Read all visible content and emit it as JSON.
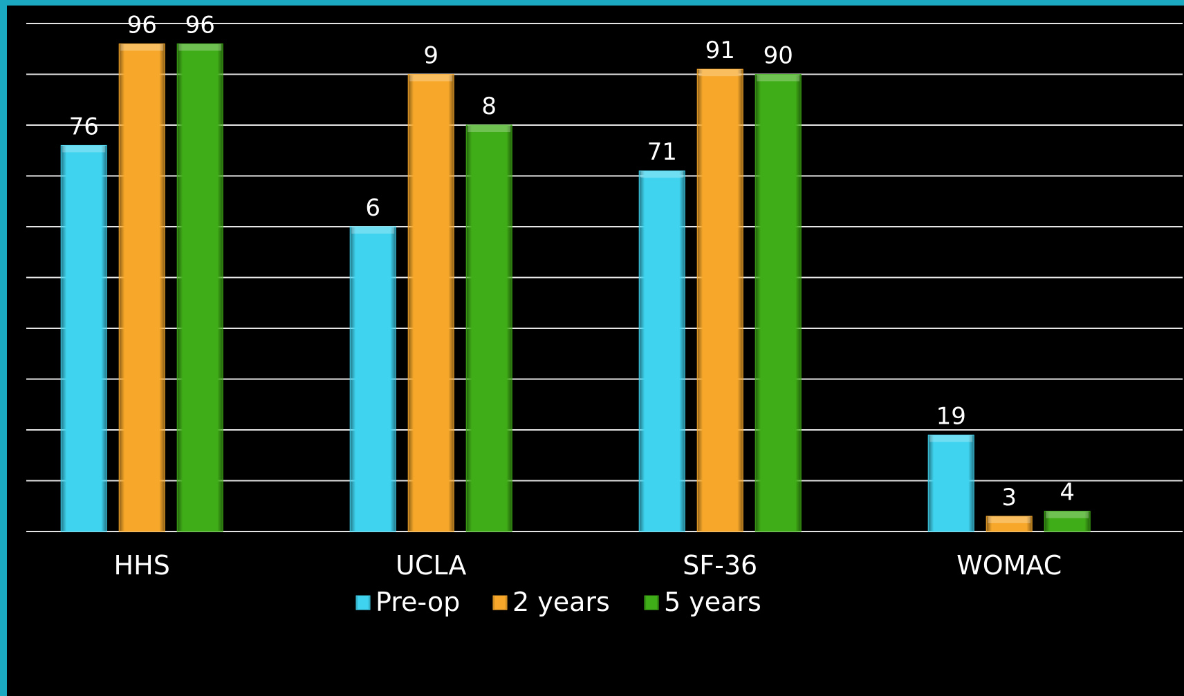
{
  "chart_data": {
    "type": "bar",
    "categories": [
      "HHS",
      "UCLA",
      "SF-36",
      "WOMAC"
    ],
    "series": [
      {
        "name": "Pre-op",
        "values": [
          76,
          6,
          71,
          19
        ],
        "labels": [
          "76",
          "6",
          "71",
          "19"
        ],
        "color": "#3fd3ef"
      },
      {
        "name": "2 years",
        "values": [
          96,
          9,
          91,
          3
        ],
        "labels": [
          "96",
          "9",
          "91",
          "3"
        ],
        "color": "#f7a82a"
      },
      {
        "name": "5 years",
        "values": [
          96,
          8,
          90,
          4
        ],
        "labels": [
          "96",
          "8",
          "90",
          "4"
        ],
        "color": "#3fad17"
      }
    ],
    "plotted_heights": [
      [
        76,
        60,
        71,
        19
      ],
      [
        96,
        90,
        91,
        3
      ],
      [
        96,
        80,
        90,
        4
      ]
    ],
    "ylim": [
      0,
      100
    ],
    "gridlines": 10,
    "grid": true,
    "legend_position": "bottom",
    "title": "",
    "xlabel": "",
    "ylabel": ""
  },
  "colors": {
    "background": "#000000",
    "border": "#1aa9c0",
    "grid": "#e6e6e6",
    "text": "#ffffff"
  }
}
